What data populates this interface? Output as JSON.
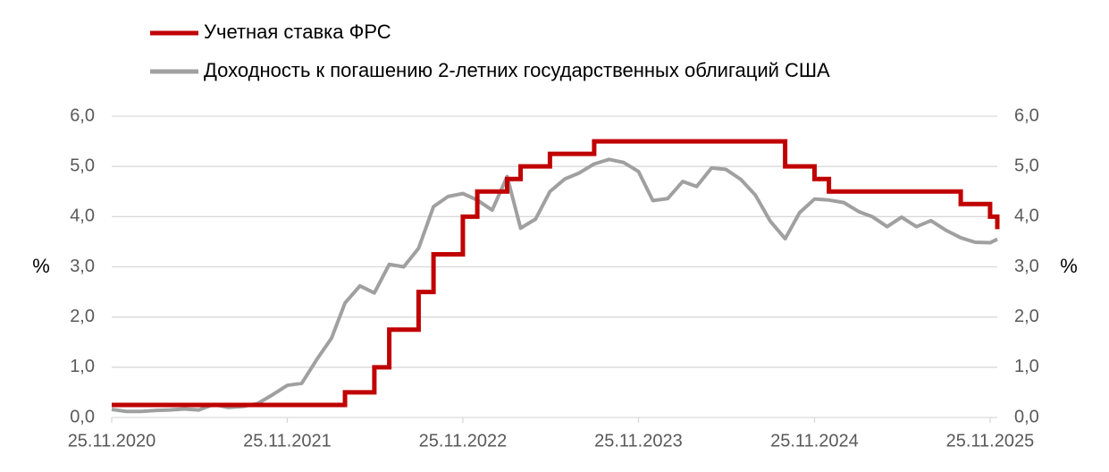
{
  "chart_data": {
    "type": "line",
    "x": [
      "25.11.2020",
      "25.12.2020",
      "25.01.2021",
      "25.02.2021",
      "25.03.2021",
      "25.04.2021",
      "25.05.2021",
      "25.06.2021",
      "25.07.2021",
      "25.08.2021",
      "25.09.2021",
      "25.10.2021",
      "25.11.2021",
      "25.12.2021",
      "25.01.2022",
      "25.02.2022",
      "25.03.2022",
      "25.04.2022",
      "25.05.2022",
      "25.06.2022",
      "25.07.2022",
      "25.08.2022",
      "25.09.2022",
      "25.10.2022",
      "25.11.2022",
      "25.12.2022",
      "25.01.2023",
      "25.02.2023",
      "25.03.2023",
      "25.04.2023",
      "25.05.2023",
      "25.06.2023",
      "25.07.2023",
      "25.08.2023",
      "25.09.2023",
      "25.10.2023",
      "25.11.2023",
      "25.12.2023",
      "25.01.2024",
      "25.02.2024",
      "25.03.2024",
      "25.04.2024",
      "25.05.2024",
      "25.06.2024",
      "25.07.2024",
      "25.08.2024",
      "25.09.2024",
      "25.10.2024",
      "25.11.2024",
      "25.12.2024",
      "25.01.2025",
      "25.02.2025",
      "25.03.2025",
      "25.04.2025",
      "25.05.2025",
      "25.06.2025",
      "25.07.2025",
      "25.08.2025",
      "25.09.2025",
      "25.10.2025",
      "25.11.2025",
      "10.12.2025"
    ],
    "series": [
      {
        "name": "Учетная ставка ФРС",
        "color": "#c00000",
        "step": true,
        "values": [
          0.25,
          0.25,
          0.25,
          0.25,
          0.25,
          0.25,
          0.25,
          0.25,
          0.25,
          0.25,
          0.25,
          0.25,
          0.25,
          0.25,
          0.25,
          0.25,
          0.5,
          0.5,
          1.0,
          1.75,
          1.75,
          2.5,
          3.25,
          3.25,
          4.0,
          4.5,
          4.5,
          4.75,
          5.0,
          5.0,
          5.25,
          5.25,
          5.25,
          5.5,
          5.5,
          5.5,
          5.5,
          5.5,
          5.5,
          5.5,
          5.5,
          5.5,
          5.5,
          5.5,
          5.5,
          5.5,
          5.0,
          5.0,
          4.75,
          4.5,
          4.5,
          4.5,
          4.5,
          4.5,
          4.5,
          4.5,
          4.5,
          4.5,
          4.25,
          4.25,
          4.0,
          3.75
        ]
      },
      {
        "name": "Доходность к погашению 2-летних государственных облигаций США",
        "color": "#a0a0a0",
        "step": false,
        "values": [
          0.16,
          0.12,
          0.12,
          0.14,
          0.15,
          0.17,
          0.15,
          0.26,
          0.2,
          0.22,
          0.28,
          0.45,
          0.64,
          0.68,
          1.15,
          1.58,
          2.28,
          2.62,
          2.48,
          3.05,
          3.0,
          3.37,
          4.2,
          4.4,
          4.46,
          4.33,
          4.13,
          4.8,
          3.77,
          3.95,
          4.5,
          4.75,
          4.87,
          5.05,
          5.14,
          5.08,
          4.9,
          4.32,
          4.36,
          4.7,
          4.6,
          4.97,
          4.94,
          4.74,
          4.43,
          3.91,
          3.56,
          4.08,
          4.35,
          4.33,
          4.28,
          4.1,
          4.0,
          3.8,
          3.99,
          3.8,
          3.92,
          3.73,
          3.58,
          3.49,
          3.48,
          3.55
        ]
      }
    ],
    "xlim": [
      "25.11.2020",
      "10.12.2025"
    ],
    "xticks": [
      "25.11.2020",
      "25.11.2021",
      "25.11.2022",
      "25.11.2023",
      "25.11.2024",
      "25.11.2025"
    ],
    "ylim": [
      0,
      6
    ],
    "yticks": [
      {
        "value": 0,
        "label": "0,0"
      },
      {
        "value": 1,
        "label": "1,0"
      },
      {
        "value": 2,
        "label": "2,0"
      },
      {
        "value": 3,
        "label": "3,0"
      },
      {
        "value": 4,
        "label": "4,0"
      },
      {
        "value": 5,
        "label": "5,0"
      },
      {
        "value": 6,
        "label": "6,0"
      }
    ],
    "y2lim": [
      0,
      6
    ],
    "y2ticks": [
      {
        "value": 0,
        "label": "0,0"
      },
      {
        "value": 1,
        "label": "1,0"
      },
      {
        "value": 2,
        "label": "2,0"
      },
      {
        "value": 3,
        "label": "3,0"
      },
      {
        "value": 4,
        "label": "4,0"
      },
      {
        "value": 5,
        "label": "5,0"
      },
      {
        "value": 6,
        "label": "6,0"
      }
    ],
    "y_label": "%",
    "y2_label": "%",
    "grid": true,
    "legend": "top"
  }
}
